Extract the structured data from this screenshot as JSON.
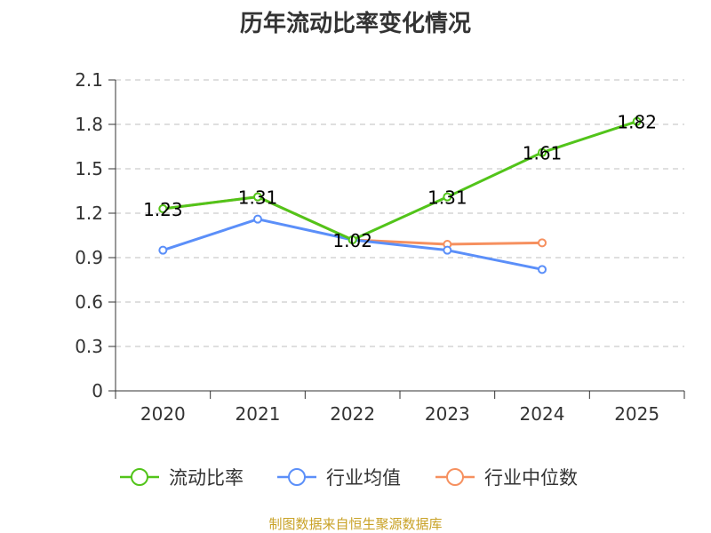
{
  "chart_data": {
    "type": "line",
    "title": "历年流动比率变化情况",
    "categories": [
      "2020",
      "2021",
      "2022",
      "2023",
      "2024",
      "2025"
    ],
    "y_ticks": [
      "0",
      "0.3",
      "0.6",
      "0.9",
      "1.2",
      "1.5",
      "1.8",
      "2.1"
    ],
    "ylim": [
      0,
      2.1
    ],
    "grid": true,
    "legend_position": "bottom",
    "series": [
      {
        "name": "流动比率",
        "color": "#52c41a",
        "values": [
          1.23,
          1.31,
          1.02,
          1.31,
          1.61,
          1.82
        ],
        "labels": [
          "1.23",
          "1.31",
          "1.02",
          "1.31",
          "1.61",
          "1.82"
        ]
      },
      {
        "name": "行业均值",
        "color": "#5b8ff9",
        "values": [
          0.95,
          1.16,
          1.02,
          0.95,
          0.82,
          null
        ]
      },
      {
        "name": "行业中位数",
        "color": "#f6905f",
        "values": [
          1.23,
          1.31,
          1.02,
          0.99,
          1.0,
          null
        ]
      }
    ]
  },
  "source": "制图数据来自恒生聚源数据库"
}
